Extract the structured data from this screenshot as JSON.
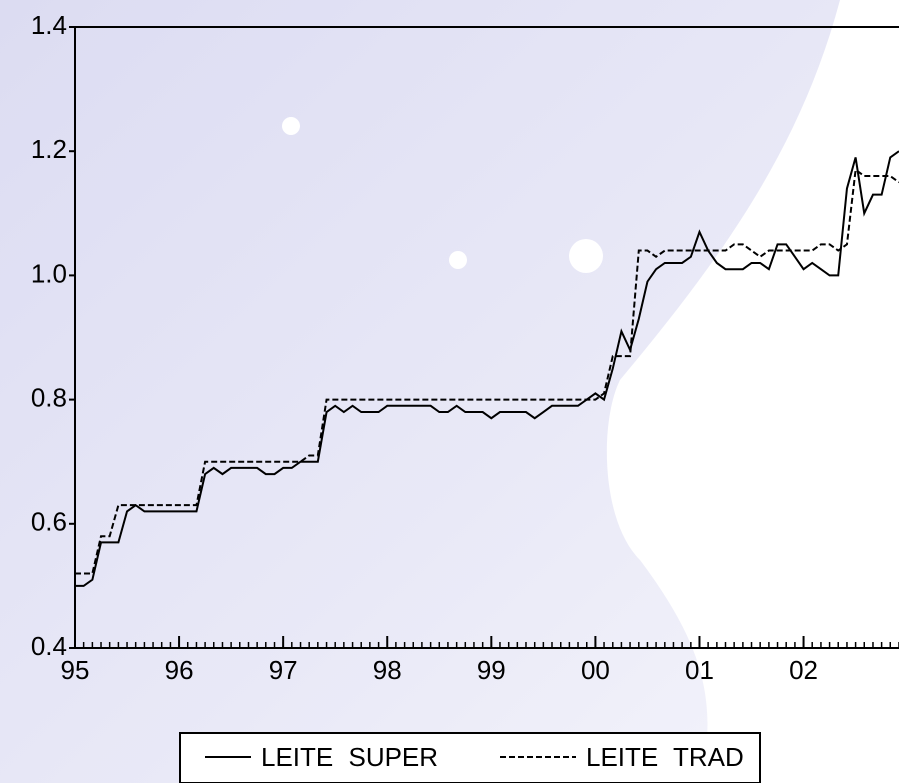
{
  "chart_data": {
    "type": "line",
    "x": [
      1995,
      1995.083,
      1995.167,
      1995.25,
      1995.333,
      1995.417,
      1995.5,
      1995.583,
      1995.667,
      1995.75,
      1995.833,
      1995.917,
      1996,
      1996.083,
      1996.167,
      1996.25,
      1996.333,
      1996.417,
      1996.5,
      1996.583,
      1996.667,
      1996.75,
      1996.833,
      1996.917,
      1997,
      1997.083,
      1997.167,
      1997.25,
      1997.333,
      1997.417,
      1997.5,
      1997.583,
      1997.667,
      1997.75,
      1997.833,
      1997.917,
      1998,
      1998.083,
      1998.167,
      1998.25,
      1998.333,
      1998.417,
      1998.5,
      1998.583,
      1998.667,
      1998.75,
      1998.833,
      1998.917,
      1999,
      1999.083,
      1999.167,
      1999.25,
      1999.333,
      1999.417,
      1999.5,
      1999.583,
      1999.667,
      1999.75,
      1999.833,
      1999.917,
      2000,
      2000.083,
      2000.167,
      2000.25,
      2000.333,
      2000.417,
      2000.5,
      2000.583,
      2000.667,
      2000.75,
      2000.833,
      2000.917,
      2001,
      2001.083,
      2001.167,
      2001.25,
      2001.333,
      2001.417,
      2001.5,
      2001.583,
      2001.667,
      2001.75,
      2001.833,
      2001.917,
      2002,
      2002.083,
      2002.167,
      2002.25,
      2002.333,
      2002.417,
      2002.5,
      2002.583,
      2002.667,
      2002.75,
      2002.833,
      2002.917
    ],
    "series": [
      {
        "name": "LEITE SUPER",
        "color": "#000000",
        "style": "solid",
        "values": [
          0.5,
          0.5,
          0.51,
          0.57,
          0.57,
          0.57,
          0.62,
          0.63,
          0.62,
          0.62,
          0.62,
          0.62,
          0.62,
          0.62,
          0.62,
          0.68,
          0.69,
          0.68,
          0.69,
          0.69,
          0.69,
          0.69,
          0.68,
          0.68,
          0.69,
          0.69,
          0.7,
          0.7,
          0.7,
          0.78,
          0.79,
          0.78,
          0.79,
          0.78,
          0.78,
          0.78,
          0.79,
          0.79,
          0.79,
          0.79,
          0.79,
          0.79,
          0.78,
          0.78,
          0.79,
          0.78,
          0.78,
          0.78,
          0.77,
          0.78,
          0.78,
          0.78,
          0.78,
          0.77,
          0.78,
          0.79,
          0.79,
          0.79,
          0.79,
          0.8,
          0.81,
          0.8,
          0.85,
          0.91,
          0.88,
          0.93,
          0.99,
          1.01,
          1.02,
          1.02,
          1.02,
          1.03,
          1.07,
          1.04,
          1.02,
          1.01,
          1.01,
          1.01,
          1.02,
          1.02,
          1.01,
          1.05,
          1.05,
          1.03,
          1.01,
          1.02,
          1.01,
          1.0,
          1.0,
          1.14,
          1.19,
          1.1,
          1.13,
          1.13,
          1.19,
          1.2
        ]
      },
      {
        "name": "LEITE TRAD",
        "color": "#000000",
        "style": "dashed",
        "values": [
          0.52,
          0.52,
          0.52,
          0.58,
          0.58,
          0.63,
          0.63,
          0.63,
          0.63,
          0.63,
          0.63,
          0.63,
          0.63,
          0.63,
          0.63,
          0.7,
          0.7,
          0.7,
          0.7,
          0.7,
          0.7,
          0.7,
          0.7,
          0.7,
          0.7,
          0.7,
          0.7,
          0.71,
          0.71,
          0.8,
          0.8,
          0.8,
          0.8,
          0.8,
          0.8,
          0.8,
          0.8,
          0.8,
          0.8,
          0.8,
          0.8,
          0.8,
          0.8,
          0.8,
          0.8,
          0.8,
          0.8,
          0.8,
          0.8,
          0.8,
          0.8,
          0.8,
          0.8,
          0.8,
          0.8,
          0.8,
          0.8,
          0.8,
          0.8,
          0.8,
          0.8,
          0.81,
          0.87,
          0.87,
          0.87,
          1.04,
          1.04,
          1.03,
          1.04,
          1.04,
          1.04,
          1.04,
          1.04,
          1.04,
          1.04,
          1.04,
          1.05,
          1.05,
          1.04,
          1.03,
          1.04,
          1.04,
          1.04,
          1.04,
          1.04,
          1.04,
          1.05,
          1.05,
          1.04,
          1.05,
          1.17,
          1.16,
          1.16,
          1.16,
          1.16,
          1.15
        ]
      }
    ],
    "xlim": [
      1995,
      2002.917
    ],
    "xticks": [
      {
        "value": 1995,
        "label": "95"
      },
      {
        "value": 1996,
        "label": "96"
      },
      {
        "value": 1997,
        "label": "97"
      },
      {
        "value": 1998,
        "label": "98"
      },
      {
        "value": 1999,
        "label": "99"
      },
      {
        "value": 2000,
        "label": "00"
      },
      {
        "value": 2001,
        "label": "01"
      },
      {
        "value": 2002,
        "label": "02"
      }
    ],
    "ylim": [
      0.4,
      1.4
    ],
    "yticks": [
      0.4,
      0.6,
      0.8,
      {
        "value": 1,
        "label": "1.0"
      },
      1.2,
      1.4
    ],
    "grid": false
  }
}
